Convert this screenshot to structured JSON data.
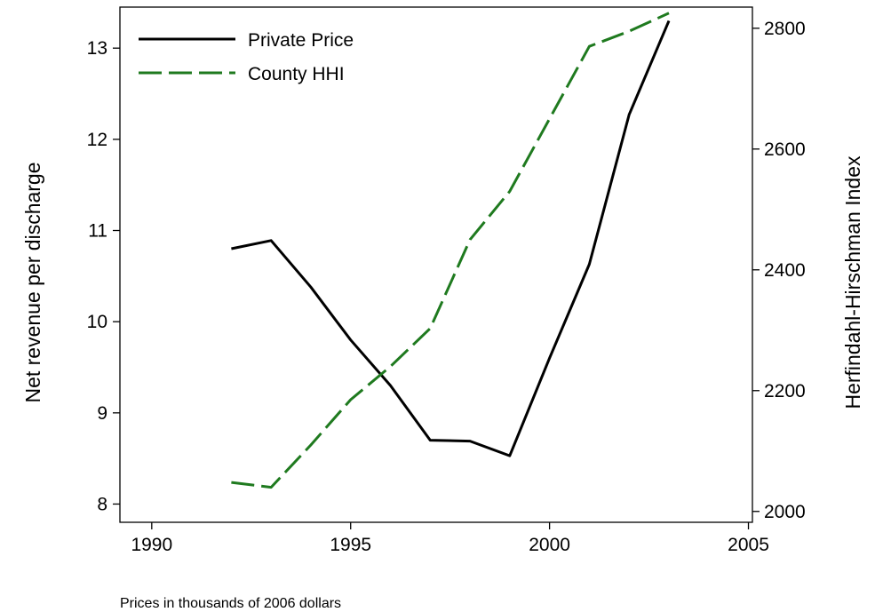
{
  "chart_data": {
    "type": "line",
    "xlabel": "",
    "ylabel_left": "Net revenue per discharge",
    "ylabel_right": "Herfindahl-Hirschman Index",
    "note": "Prices in thousands of 2006 dollars",
    "xlim": [
      1989.2,
      2005.1
    ],
    "ylim_left": [
      7.8,
      13.45
    ],
    "ylim_right": [
      1982,
      2835
    ],
    "x_ticks": [
      1990,
      1995,
      2000,
      2005
    ],
    "y_ticks_left": [
      8,
      9,
      10,
      11,
      12,
      13
    ],
    "y_ticks_right": [
      2000,
      2200,
      2400,
      2600,
      2800
    ],
    "grid": false,
    "legend_position": "top-left",
    "series": [
      {
        "name": "Private Price",
        "axis": "left",
        "color": "#000000",
        "style": "solid",
        "x": [
          1992,
          1993,
          1994,
          1995,
          1996,
          1997,
          1998,
          1999,
          2000,
          2001,
          2002,
          2003
        ],
        "values": [
          10.8,
          10.89,
          10.38,
          9.8,
          9.3,
          8.7,
          8.69,
          8.53,
          9.6,
          10.63,
          12.27,
          13.3
        ]
      },
      {
        "name": "County HHI",
        "axis": "right",
        "color": "#1f7a1f",
        "style": "dashed",
        "x": [
          1992,
          1993,
          1994,
          1995,
          1996,
          1997,
          1998,
          1999,
          2000,
          2001,
          2002,
          2003
        ],
        "values": [
          2048,
          2040,
          2110,
          2185,
          2240,
          2303,
          2450,
          2530,
          2650,
          2770,
          2795,
          2825
        ]
      }
    ]
  }
}
